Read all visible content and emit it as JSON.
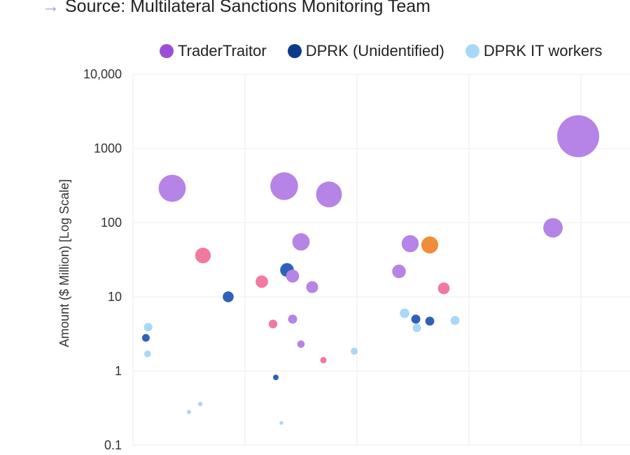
{
  "source": {
    "arrow": "→",
    "text": "Source: Multilateral Sanctions Monitoring Team"
  },
  "colors": {
    "TraderTraitor": "#b584e6",
    "TraderTraitor_legend": "#9b4fd9",
    "DPRK (Unidentified)": "#2e62b8",
    "DPRK (Unidentified)_legend": "#0e3a8c",
    "DPRK IT workers": "#a8d8f8",
    "pink": "#f17a9e",
    "orange": "#f08c3a"
  },
  "chart_data": {
    "type": "scatter",
    "ylabel": "Amount ($ Million) [Log Scale]",
    "yscale": "log",
    "ylim": [
      0.1,
      10000
    ],
    "yticks": [
      {
        "value": 10000,
        "label": "10,000"
      },
      {
        "value": 1000,
        "label": "1000"
      },
      {
        "value": 100,
        "label": "100"
      },
      {
        "value": 10,
        "label": "10"
      },
      {
        "value": 1,
        "label": "1"
      },
      {
        "value": 0.1,
        "label": "0.1"
      }
    ],
    "legend": [
      {
        "name": "TraderTraitor",
        "color": "#9b4fd9"
      },
      {
        "name": "DPRK (Unidentified)",
        "color": "#0e3a8c"
      },
      {
        "name": "DPRK IT workers",
        "color": "#a8d8f8"
      }
    ],
    "points": [
      {
        "x": 0.23,
        "y": 2.8,
        "group": "DPRK (Unidentified)"
      },
      {
        "x": 0.26,
        "y": 1.7,
        "group": "DPRK IT workers"
      },
      {
        "x": 0.27,
        "y": 3.9,
        "group": "DPRK IT workers"
      },
      {
        "x": 0.7,
        "y": 290,
        "group": "TraderTraitor"
      },
      {
        "x": 1.0,
        "y": 0.28,
        "group": "DPRK IT workers"
      },
      {
        "x": 1.2,
        "y": 0.36,
        "group": "DPRK IT workers"
      },
      {
        "x": 1.25,
        "y": 36,
        "group": "pink"
      },
      {
        "x": 1.7,
        "y": 10,
        "group": "DPRK (Unidentified)"
      },
      {
        "x": 2.3,
        "y": 16,
        "group": "pink"
      },
      {
        "x": 2.5,
        "y": 4.3,
        "group": "pink"
      },
      {
        "x": 2.55,
        "y": 0.82,
        "group": "DPRK (Unidentified)"
      },
      {
        "x": 2.65,
        "y": 0.2,
        "group": "DPRK IT workers"
      },
      {
        "x": 2.7,
        "y": 310,
        "group": "TraderTraitor"
      },
      {
        "x": 2.75,
        "y": 23,
        "group": "DPRK (Unidentified)"
      },
      {
        "x": 2.85,
        "y": 19,
        "group": "TraderTraitor"
      },
      {
        "x": 2.85,
        "y": 5.0,
        "group": "TraderTraitor"
      },
      {
        "x": 3.0,
        "y": 55,
        "group": "TraderTraitor"
      },
      {
        "x": 3.0,
        "y": 2.3,
        "group": "TraderTraitor"
      },
      {
        "x": 3.2,
        "y": 13.5,
        "group": "TraderTraitor"
      },
      {
        "x": 3.4,
        "y": 1.4,
        "group": "pink"
      },
      {
        "x": 3.5,
        "y": 240,
        "group": "TraderTraitor"
      },
      {
        "x": 3.95,
        "y": 1.85,
        "group": "DPRK IT workers"
      },
      {
        "x": 4.75,
        "y": 22,
        "group": "TraderTraitor"
      },
      {
        "x": 4.85,
        "y": 6.0,
        "group": "DPRK IT workers"
      },
      {
        "x": 4.95,
        "y": 52,
        "group": "TraderTraitor"
      },
      {
        "x": 5.05,
        "y": 5.0,
        "group": "DPRK (Unidentified)"
      },
      {
        "x": 5.07,
        "y": 3.8,
        "group": "DPRK IT workers"
      },
      {
        "x": 5.3,
        "y": 50,
        "group": "orange"
      },
      {
        "x": 5.3,
        "y": 4.7,
        "group": "DPRK (Unidentified)"
      },
      {
        "x": 5.55,
        "y": 13,
        "group": "pink"
      },
      {
        "x": 5.75,
        "y": 4.8,
        "group": "DPRK IT workers"
      },
      {
        "x": 7.5,
        "y": 85,
        "group": "TraderTraitor"
      },
      {
        "x": 7.95,
        "y": 1460,
        "group": "TraderTraitor"
      }
    ]
  }
}
